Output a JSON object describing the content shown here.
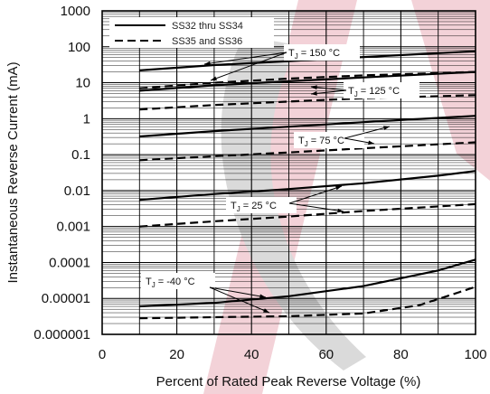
{
  "chart_data": {
    "type": "line",
    "title": "",
    "xlabel": "Percent of Rated Peak Reverse Voltage (%)",
    "ylabel": "Instantaneous Reverse Current (mA)",
    "xlim": [
      0,
      100
    ],
    "ylim": [
      1e-06,
      1000
    ],
    "yscale": "log",
    "grid": true,
    "x_ticks": [
      "0",
      "20",
      "40",
      "60",
      "80",
      "100"
    ],
    "y_ticks": [
      "0.000001",
      "0.00001",
      "0.0001",
      "0.001",
      "0.01",
      "0.1",
      "1",
      "10",
      "100",
      "1000"
    ],
    "legend": {
      "placement": "top-left",
      "entries": [
        {
          "label": "SS32 thru SS34",
          "style": "solid"
        },
        {
          "label": "SS35 and SS36",
          "style": "dashed"
        }
      ]
    },
    "annotations": [
      {
        "sub_prefix": "T",
        "sub": "J",
        "text": " = 150 °C"
      },
      {
        "sub_prefix": "T",
        "sub": "J",
        "text": " = 125 °C"
      },
      {
        "sub_prefix": "T",
        "sub": "J",
        "text": " = 75 °C"
      },
      {
        "sub_prefix": "T",
        "sub": "J",
        "text": " = 25 °C"
      },
      {
        "sub_prefix": "T",
        "sub": "J",
        "text": " = -40 °C"
      }
    ],
    "series": [
      {
        "group": "SS32 thru SS34",
        "temp": "150 °C",
        "style": "solid",
        "x": [
          10,
          30,
          50,
          70,
          100
        ],
        "y": [
          22,
          31,
          40,
          52,
          75
        ]
      },
      {
        "group": "SS35 and SS36",
        "temp": "150 °C",
        "style": "dashed",
        "x": [
          10,
          30,
          50,
          70,
          100
        ],
        "y": [
          7,
          10,
          13,
          16,
          20
        ]
      },
      {
        "group": "SS32 thru SS34",
        "temp": "125 °C",
        "style": "solid",
        "x": [
          10,
          30,
          50,
          70,
          100
        ],
        "y": [
          6,
          8.5,
          11,
          14,
          20
        ]
      },
      {
        "group": "SS35 and SS36",
        "temp": "125 °C",
        "style": "dashed",
        "x": [
          10,
          30,
          50,
          70,
          100
        ],
        "y": [
          1.8,
          2.4,
          3,
          3.7,
          4.5
        ]
      },
      {
        "group": "SS32 thru SS34",
        "temp": "75 °C",
        "style": "solid",
        "x": [
          10,
          30,
          50,
          70,
          100
        ],
        "y": [
          0.32,
          0.45,
          0.6,
          0.8,
          1.2
        ]
      },
      {
        "group": "SS35 and SS36",
        "temp": "75 °C",
        "style": "dashed",
        "x": [
          10,
          30,
          50,
          70,
          100
        ],
        "y": [
          0.07,
          0.09,
          0.115,
          0.15,
          0.22
        ]
      },
      {
        "group": "SS32 thru SS34",
        "temp": "25 °C",
        "style": "solid",
        "x": [
          10,
          30,
          50,
          70,
          90,
          100
        ],
        "y": [
          0.0055,
          0.008,
          0.011,
          0.016,
          0.026,
          0.035
        ]
      },
      {
        "group": "SS35 and SS36",
        "temp": "25 °C",
        "style": "dashed",
        "x": [
          10,
          30,
          50,
          70,
          100
        ],
        "y": [
          0.001,
          0.0014,
          0.0019,
          0.0027,
          0.0042
        ]
      },
      {
        "group": "SS32 thru SS34",
        "temp": "-40 °C",
        "style": "solid",
        "x": [
          10,
          30,
          50,
          70,
          90,
          100
        ],
        "y": [
          6e-06,
          7.5e-06,
          1.15e-05,
          2.2e-05,
          6e-05,
          0.00012
        ]
      },
      {
        "group": "SS35 and SS36",
        "temp": "-40 °C",
        "style": "dashed",
        "x": [
          10,
          30,
          50,
          70,
          85,
          100
        ],
        "y": [
          2.8e-06,
          3e-06,
          3.2e-06,
          3.8e-06,
          6.5e-06,
          2.1e-05
        ]
      }
    ]
  }
}
